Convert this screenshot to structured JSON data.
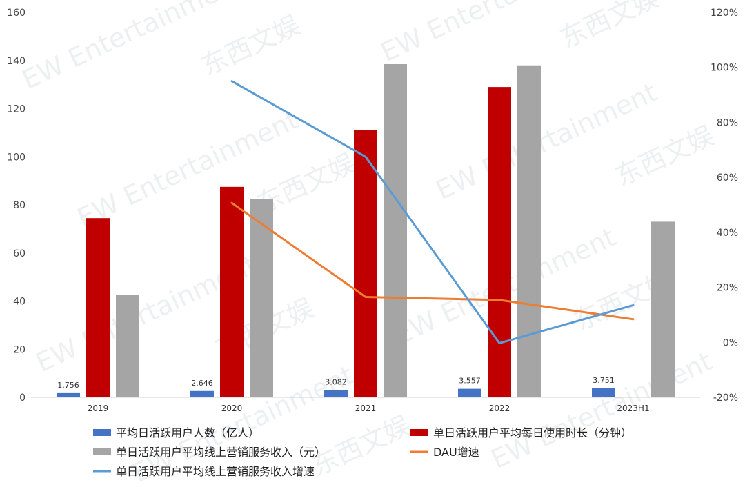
{
  "chart_data": {
    "type": "bar",
    "categories": [
      "2019",
      "2020",
      "2021",
      "2022",
      "2023H1"
    ],
    "y_left": {
      "ticks": [
        "0",
        "20",
        "40",
        "60",
        "80",
        "100",
        "120",
        "140",
        "160"
      ],
      "lim": [
        0,
        160
      ]
    },
    "y_right": {
      "ticks": [
        "-20%",
        "0%",
        "20%",
        "40%",
        "60%",
        "80%",
        "100%",
        "120%"
      ],
      "lim": [
        -20,
        120
      ]
    },
    "series": [
      {
        "name": "平均日活跃用户人数（亿人）",
        "kind": "bar",
        "axis": "left",
        "color": "#4472c4",
        "values": [
          1.756,
          2.646,
          3.082,
          3.557,
          3.751
        ],
        "labels": [
          "1.756",
          "2.646",
          "3.082",
          "3.557",
          "3.751"
        ]
      },
      {
        "name": "单日活跃用户平均每日使用时长（分钟）",
        "kind": "bar",
        "axis": "left",
        "color": "#c00000",
        "values": [
          74.5,
          87.5,
          111,
          129,
          null
        ]
      },
      {
        "name": "单日活跃用户平均线上营销服务收入（元）",
        "kind": "bar",
        "axis": "left",
        "color": "#a5a5a5",
        "values": [
          42.5,
          82.5,
          138.5,
          138,
          73
        ]
      },
      {
        "name": "DAU增速",
        "kind": "line",
        "axis": "right",
        "color": "#ed7d31",
        "values": [
          null,
          50.7,
          16.5,
          15.4,
          8.4
        ]
      },
      {
        "name": "单日活跃用户平均线上营销服务收入增速",
        "kind": "line",
        "axis": "right",
        "color": "#5b9bd5",
        "values": [
          null,
          95,
          67.5,
          -0.3,
          13.5
        ]
      }
    ],
    "grid": false,
    "legend_position": "bottom"
  },
  "watermark": {
    "text_cn": "东西文娱",
    "text_en": "EW Entertainment"
  }
}
